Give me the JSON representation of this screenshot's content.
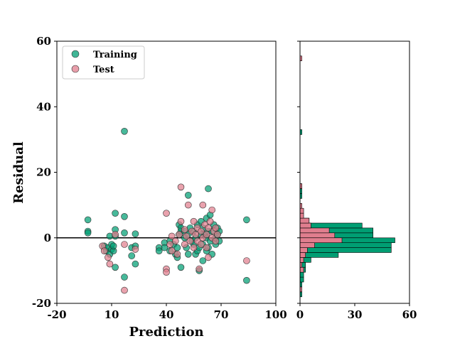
{
  "chart_data": [
    {
      "type": "scatter",
      "xlabel": "Prediction",
      "ylabel": "Residual",
      "xlim": [
        -20,
        100
      ],
      "ylim": [
        -20,
        60
      ],
      "xticks": [
        "-20",
        "10",
        "40",
        "70",
        "100"
      ],
      "yticks": [
        "-20",
        "0",
        "20",
        "40",
        "60"
      ],
      "reference_line_y": 0,
      "legend": {
        "placement": "top-left",
        "entries": [
          "Training",
          "Test"
        ]
      },
      "series": [
        {
          "name": "Training",
          "color": "#009E73",
          "points": [
            [
              -3,
              5.5
            ],
            [
              -3,
              2
            ],
            [
              -3,
              1.5
            ],
            [
              6,
              -2.5
            ],
            [
              7,
              -4
            ],
            [
              8,
              -3
            ],
            [
              9,
              0.5
            ],
            [
              9,
              -5
            ],
            [
              10,
              -3.5
            ],
            [
              10,
              -2
            ],
            [
              11,
              -4
            ],
            [
              11,
              -2.5
            ],
            [
              12,
              7.5
            ],
            [
              12,
              2.5
            ],
            [
              12,
              0.5
            ],
            [
              12,
              -9
            ],
            [
              17,
              32.5
            ],
            [
              17,
              6.5
            ],
            [
              17,
              1.5
            ],
            [
              17,
              -12
            ],
            [
              21,
              -5.5
            ],
            [
              21,
              -3
            ],
            [
              23,
              1.2
            ],
            [
              23,
              -2.5
            ],
            [
              23,
              -8
            ],
            [
              36,
              -3
            ],
            [
              36,
              -4
            ],
            [
              39,
              -1.5
            ],
            [
              39,
              -3
            ],
            [
              42,
              -1
            ],
            [
              42,
              -4
            ],
            [
              44,
              -2
            ],
            [
              45,
              -5
            ],
            [
              46,
              -6
            ],
            [
              46,
              -3
            ],
            [
              47,
              1
            ],
            [
              47,
              4
            ],
            [
              48,
              3
            ],
            [
              48,
              2
            ],
            [
              48,
              -9
            ],
            [
              50,
              0
            ],
            [
              50,
              2
            ],
            [
              51,
              -3
            ],
            [
              52,
              13
            ],
            [
              52,
              -5
            ],
            [
              52,
              1
            ],
            [
              53,
              3
            ],
            [
              54,
              -1
            ],
            [
              55,
              2
            ],
            [
              55,
              -2
            ],
            [
              56,
              0
            ],
            [
              56,
              -5
            ],
            [
              57,
              4
            ],
            [
              57,
              -4
            ],
            [
              58,
              -10
            ],
            [
              58,
              -3
            ],
            [
              59,
              1
            ],
            [
              59,
              5
            ],
            [
              60,
              -7
            ],
            [
              60,
              -2
            ],
            [
              60,
              3
            ],
            [
              61,
              1
            ],
            [
              62,
              -4
            ],
            [
              62,
              0
            ],
            [
              62,
              6
            ],
            [
              63,
              15
            ],
            [
              63,
              -3
            ],
            [
              63,
              2
            ],
            [
              64,
              -1
            ],
            [
              64,
              7
            ],
            [
              65,
              -5
            ],
            [
              65,
              2
            ],
            [
              66,
              4
            ],
            [
              67,
              -2
            ],
            [
              67,
              0
            ],
            [
              68,
              1
            ],
            [
              68,
              3
            ],
            [
              69,
              -1
            ],
            [
              69,
              2
            ],
            [
              84,
              5.5
            ],
            [
              84,
              -13
            ]
          ]
        },
        {
          "name": "Test",
          "color": "#E07E8E",
          "points": [
            [
              5,
              -2.5
            ],
            [
              6,
              -4
            ],
            [
              8,
              -6
            ],
            [
              9,
              -8
            ],
            [
              12,
              1
            ],
            [
              17,
              -2
            ],
            [
              17,
              -16
            ],
            [
              23,
              -3.5
            ],
            [
              40,
              7.5
            ],
            [
              40,
              -9.5
            ],
            [
              40,
              -10.5
            ],
            [
              42,
              -2
            ],
            [
              43,
              -4
            ],
            [
              43,
              0.5
            ],
            [
              45,
              -1
            ],
            [
              46,
              -5
            ],
            [
              47,
              1
            ],
            [
              48,
              15.5
            ],
            [
              48,
              5
            ],
            [
              50,
              2.5
            ],
            [
              50,
              -2
            ],
            [
              51,
              0.5
            ],
            [
              52,
              10
            ],
            [
              53,
              -1
            ],
            [
              54,
              2
            ],
            [
              55,
              5
            ],
            [
              55,
              -3
            ],
            [
              56,
              1
            ],
            [
              57,
              3
            ],
            [
              57,
              -1
            ],
            [
              58,
              -9.5
            ],
            [
              59,
              -2
            ],
            [
              59,
              2
            ],
            [
              60,
              10
            ],
            [
              60,
              0
            ],
            [
              61,
              4
            ],
            [
              62,
              -3
            ],
            [
              62,
              1
            ],
            [
              63,
              -6
            ],
            [
              63,
              3
            ],
            [
              64,
              5
            ],
            [
              65,
              0
            ],
            [
              65,
              8.5
            ],
            [
              66,
              2
            ],
            [
              67,
              -1
            ],
            [
              67,
              3
            ],
            [
              68,
              1
            ],
            [
              84,
              -7
            ]
          ]
        }
      ]
    },
    {
      "type": "bar",
      "orientation": "horizontal",
      "xlim": [
        0,
        60
      ],
      "xticks": [
        "0",
        "30",
        "60"
      ],
      "ylim": [
        -20,
        60
      ],
      "bin_width": 1.5,
      "series": [
        {
          "name": "Training",
          "color": "#009E73",
          "bins": [
            {
              "y0": -18,
              "count": 1
            },
            {
              "y0": -15,
              "count": 1
            },
            {
              "y0": -13.5,
              "count": 2
            },
            {
              "y0": -12,
              "count": 2
            },
            {
              "y0": -10.5,
              "count": 3
            },
            {
              "y0": -9,
              "count": 3
            },
            {
              "y0": -7.5,
              "count": 6
            },
            {
              "y0": -6,
              "count": 21
            },
            {
              "y0": -4.5,
              "count": 50
            },
            {
              "y0": -3,
              "count": 50
            },
            {
              "y0": -1.5,
              "count": 52
            },
            {
              "y0": 0,
              "count": 40
            },
            {
              "y0": 1.5,
              "count": 40
            },
            {
              "y0": 3,
              "count": 34
            },
            {
              "y0": 4.5,
              "count": 5
            },
            {
              "y0": 6,
              "count": 1
            },
            {
              "y0": 12,
              "count": 1
            },
            {
              "y0": 13.5,
              "count": 1
            },
            {
              "y0": 15,
              "count": 1
            },
            {
              "y0": 31.5,
              "count": 1
            }
          ]
        },
        {
          "name": "Test",
          "color": "#E07E8E",
          "bins": [
            {
              "y0": -16.5,
              "count": 1
            },
            {
              "y0": -10.5,
              "count": 2
            },
            {
              "y0": -9,
              "count": 1
            },
            {
              "y0": -7.5,
              "count": 2
            },
            {
              "y0": -6,
              "count": 3
            },
            {
              "y0": -4.5,
              "count": 4
            },
            {
              "y0": -3,
              "count": 8
            },
            {
              "y0": -1.5,
              "count": 23
            },
            {
              "y0": 0,
              "count": 19
            },
            {
              "y0": 1.5,
              "count": 16
            },
            {
              "y0": 3,
              "count": 6
            },
            {
              "y0": 4.5,
              "count": 5
            },
            {
              "y0": 6,
              "count": 2
            },
            {
              "y0": 7.5,
              "count": 2
            },
            {
              "y0": 9,
              "count": 1
            },
            {
              "y0": 15,
              "count": 1
            },
            {
              "y0": 54,
              "count": 1
            }
          ]
        }
      ]
    }
  ]
}
